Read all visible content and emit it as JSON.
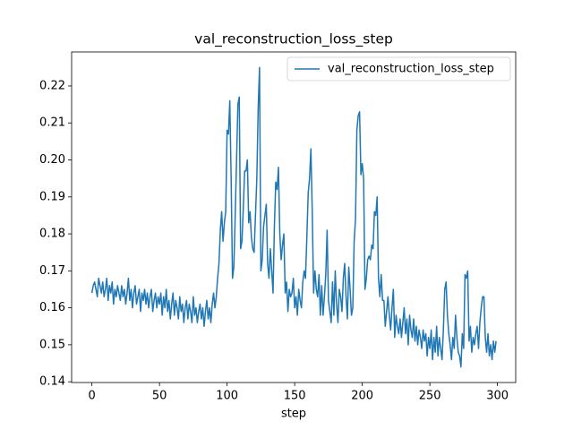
{
  "chart_data": {
    "type": "line",
    "title": "val_reconstruction_loss_step",
    "x_label": "step",
    "legend": "upper right",
    "xlim": [
      -15,
      313.5
    ],
    "xticks": [
      0,
      50,
      100,
      150,
      200,
      250,
      300
    ],
    "ylim": [
      0.1398,
      0.2292
    ],
    "yticks": [
      0.14,
      0.15,
      0.16,
      0.17,
      0.18,
      0.19,
      {
        "value": 0.2,
        "label": "0.20"
      },
      0.21,
      0.22
    ],
    "series": [
      {
        "name": "val_reconstruction_loss_step",
        "color": "#1f77b4",
        "values": [
          0.164,
          0.166,
          0.167,
          0.165,
          0.163,
          0.168,
          0.166,
          0.164,
          0.167,
          0.163,
          0.165,
          0.168,
          0.162,
          0.166,
          0.164,
          0.167,
          0.161,
          0.165,
          0.163,
          0.166,
          0.164,
          0.162,
          0.166,
          0.163,
          0.165,
          0.161,
          0.164,
          0.168,
          0.162,
          0.165,
          0.16,
          0.164,
          0.166,
          0.161,
          0.163,
          0.165,
          0.159,
          0.164,
          0.162,
          0.165,
          0.161,
          0.164,
          0.16,
          0.163,
          0.165,
          0.159,
          0.162,
          0.164,
          0.16,
          0.163,
          0.161,
          0.164,
          0.158,
          0.163,
          0.16,
          0.165,
          0.159,
          0.162,
          0.157,
          0.161,
          0.164,
          0.158,
          0.162,
          0.16,
          0.157,
          0.163,
          0.159,
          0.161,
          0.156,
          0.16,
          0.162,
          0.157,
          0.161,
          0.159,
          0.156,
          0.163,
          0.158,
          0.16,
          0.156,
          0.159,
          0.161,
          0.157,
          0.16,
          0.155,
          0.159,
          0.162,
          0.157,
          0.16,
          0.156,
          0.161,
          0.164,
          0.16,
          0.163,
          0.168,
          0.172,
          0.181,
          0.186,
          0.178,
          0.183,
          0.186,
          0.208,
          0.207,
          0.216,
          0.195,
          0.168,
          0.171,
          0.185,
          0.2,
          0.215,
          0.217,
          0.176,
          0.178,
          0.187,
          0.197,
          0.197,
          0.2,
          0.183,
          0.186,
          0.179,
          0.176,
          0.175,
          0.185,
          0.195,
          0.214,
          0.225,
          0.17,
          0.173,
          0.182,
          0.185,
          0.188,
          0.172,
          0.168,
          0.176,
          0.17,
          0.164,
          0.182,
          0.194,
          0.192,
          0.198,
          0.18,
          0.173,
          0.177,
          0.18,
          0.164,
          0.167,
          0.159,
          0.165,
          0.163,
          0.164,
          0.168,
          0.16,
          0.163,
          0.158,
          0.165,
          0.162,
          0.16,
          0.167,
          0.17,
          0.168,
          0.179,
          0.191,
          0.195,
          0.203,
          0.186,
          0.164,
          0.17,
          0.165,
          0.163,
          0.169,
          0.158,
          0.166,
          0.158,
          0.163,
          0.169,
          0.181,
          0.162,
          0.159,
          0.156,
          0.167,
          0.158,
          0.17,
          0.161,
          0.156,
          0.165,
          0.163,
          0.159,
          0.168,
          0.172,
          0.163,
          0.157,
          0.171,
          0.165,
          0.158,
          0.16,
          0.178,
          0.184,
          0.208,
          0.212,
          0.213,
          0.196,
          0.199,
          0.195,
          0.165,
          0.168,
          0.173,
          0.174,
          0.173,
          0.177,
          0.176,
          0.186,
          0.185,
          0.19,
          0.168,
          0.163,
          0.169,
          0.162,
          0.162,
          0.155,
          0.159,
          0.163,
          0.158,
          0.154,
          0.16,
          0.165,
          0.152,
          0.158,
          0.155,
          0.153,
          0.157,
          0.152,
          0.156,
          0.16,
          0.153,
          0.157,
          0.15,
          0.158,
          0.154,
          0.152,
          0.157,
          0.151,
          0.155,
          0.15,
          0.154,
          0.152,
          0.149,
          0.154,
          0.151,
          0.153,
          0.147,
          0.152,
          0.149,
          0.154,
          0.146,
          0.152,
          0.148,
          0.155,
          0.147,
          0.152,
          0.149,
          0.146,
          0.154,
          0.165,
          0.167,
          0.158,
          0.153,
          0.15,
          0.146,
          0.152,
          0.149,
          0.158,
          0.152,
          0.148,
          0.147,
          0.144,
          0.153,
          0.149,
          0.169,
          0.168,
          0.17,
          0.151,
          0.155,
          0.148,
          0.152,
          0.15,
          0.153,
          0.155,
          0.149,
          0.156,
          0.16,
          0.163,
          0.163,
          0.152,
          0.148,
          0.153,
          0.147,
          0.15,
          0.146,
          0.151,
          0.148,
          0.151
        ]
      }
    ]
  }
}
